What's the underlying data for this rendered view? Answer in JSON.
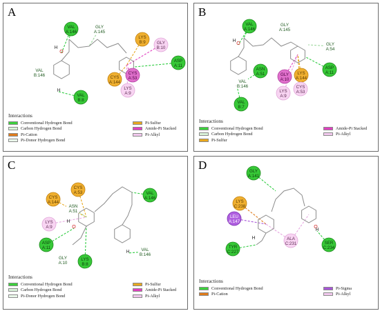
{
  "panels": [
    {
      "label": "A",
      "residues": [
        "VAL A:146",
        "GLY A:145",
        "LYS B:9",
        "GLY B:10",
        "ASP A:11",
        "VAL B:146",
        "CYS A:144",
        "CYS A:53",
        "LYS A:9",
        "VAL B:8"
      ],
      "atoms": [
        "H",
        "O",
        "H"
      ],
      "legend_title": "Interactions",
      "legend": [
        {
          "label": "Conventional Hydrogen Bond",
          "color": "#3bd13b"
        },
        {
          "label": "Pi-Sulfur",
          "color": "#e8a81f"
        },
        {
          "label": "Carbon Hydrogen Bond",
          "color": "#d9f2d9"
        },
        {
          "label": "Amide-Pi Stacked",
          "color": "#e040c0"
        },
        {
          "label": "Pi-Cation",
          "color": "#e07b1a"
        },
        {
          "label": "Pi-Alkyl",
          "color": "#f2c8ee"
        },
        {
          "label": "Pi-Donor Hydrogen Bond",
          "color": "#eaf8ea"
        }
      ]
    },
    {
      "label": "B",
      "residues": [
        "VAL A:146",
        "GLY A:145",
        "GLY A:54",
        "ASP A:11",
        "ASN A:51",
        "GLY A:10",
        "LYS A:144",
        "CYS A:53",
        "VAL B:146",
        "LYS A:9",
        "VAL B:7"
      ],
      "atoms": [
        "H",
        "O",
        "H"
      ],
      "legend_title": "Interactions",
      "legend": [
        {
          "label": "Conventional Hydrogen Bond",
          "color": "#3bd13b"
        },
        {
          "label": "Amide-Pi Stacked",
          "color": "#e040c0"
        },
        {
          "label": "Carbon Hydrogen Bond",
          "color": "#d9f2d9"
        },
        {
          "label": "Pi-Alkyl",
          "color": "#f2c8ee"
        },
        {
          "label": "Pi-Sulfur",
          "color": "#e8a81f"
        }
      ]
    },
    {
      "label": "C",
      "residues": [
        "CYS A:53",
        "CYS A:144",
        "ASN A:51",
        "LYS A:9",
        "VAL A:146",
        "ASP A:11",
        "GLY A:10",
        "LYS B:8",
        "VAL B:146"
      ],
      "atoms": [
        "H",
        "O",
        "H"
      ],
      "legend_title": "Interactions",
      "legend": [
        {
          "label": "Conventional Hydrogen Bond",
          "color": "#3bd13b"
        },
        {
          "label": "Pi-Sulfur",
          "color": "#e8a81f"
        },
        {
          "label": "Carbon Hydrogen Bond",
          "color": "#d9f2d9"
        },
        {
          "label": "Amide-Pi Stacked",
          "color": "#e040c0"
        },
        {
          "label": "Pi-Donor Hydrogen Bond",
          "color": "#eaf8ea"
        },
        {
          "label": "Pi-Alkyl",
          "color": "#f2c8ee"
        }
      ]
    },
    {
      "label": "D",
      "residues": [
        "GLY A:141",
        "LYS C:238",
        "LEU A:147",
        "ALA C:231",
        "SER C:234",
        "TYR C:227"
      ],
      "atoms": [
        "H",
        "O",
        "H"
      ],
      "legend_title": "Interactions",
      "legend": [
        {
          "label": "Conventional Hydrogen Bond",
          "color": "#3bd13b"
        },
        {
          "label": "Pi-Sigma",
          "color": "#a855d8"
        },
        {
          "label": "Pi-Cation",
          "color": "#e07b1a"
        },
        {
          "label": "Pi-Alkyl",
          "color": "#f2c8ee"
        }
      ]
    }
  ]
}
